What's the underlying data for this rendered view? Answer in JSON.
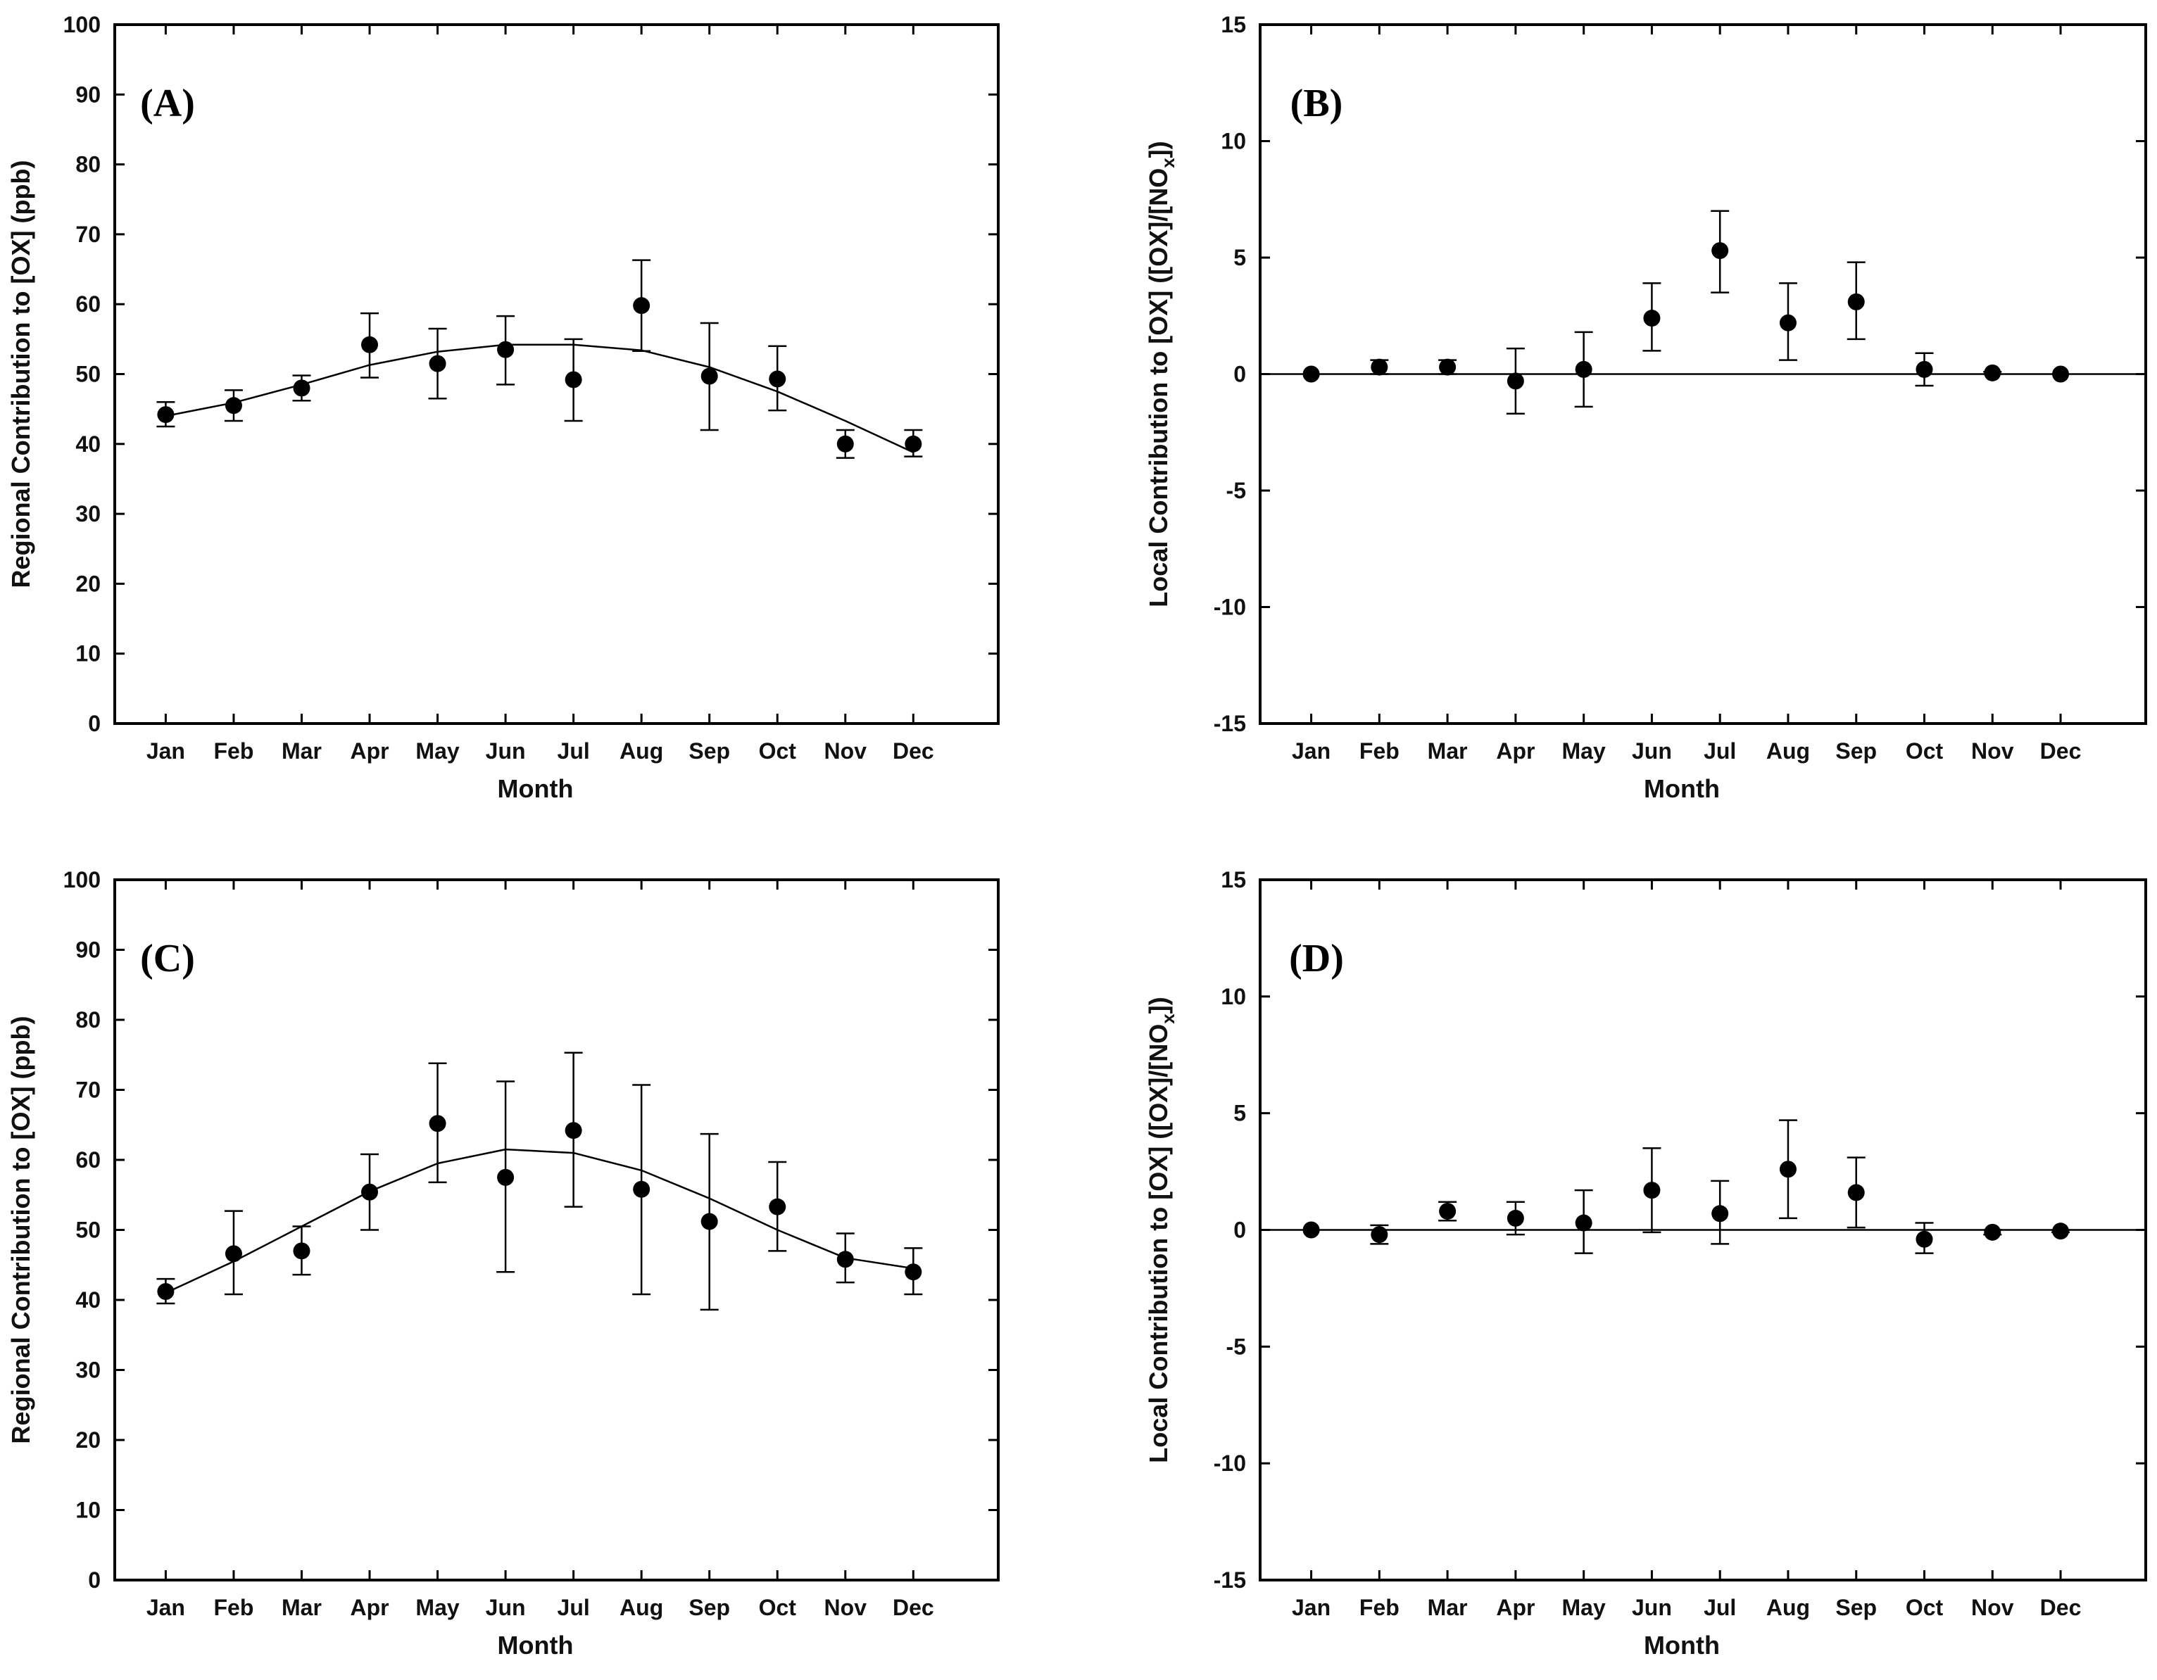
{
  "chart_data": [
    {
      "panel": "(A)",
      "type": "scatter",
      "categories": [
        "Jan",
        "Feb",
        "Mar",
        "Apr",
        "May",
        "Jun",
        "Jul",
        "Aug",
        "Sep",
        "Oct",
        "Nov",
        "Dec"
      ],
      "values": [
        44.2,
        45.5,
        48.0,
        54.2,
        51.5,
        53.5,
        49.2,
        59.8,
        49.7,
        49.3,
        40.0,
        40.0
      ],
      "err_low": [
        42.5,
        43.3,
        46.2,
        49.5,
        46.5,
        48.5,
        43.3,
        53.3,
        42.0,
        44.8,
        38.0,
        38.2
      ],
      "err_high": [
        46.0,
        47.7,
        49.8,
        58.7,
        56.5,
        58.3,
        55.0,
        66.3,
        57.3,
        54.0,
        42.0,
        42.0
      ],
      "fit": [
        44.0,
        45.9,
        48.5,
        51.3,
        53.2,
        54.2,
        54.2,
        53.4,
        51.0,
        47.5,
        43.3,
        38.8
      ],
      "xlabel": "Month",
      "ylabel": "Regional Contribution to [OX] (ppb)",
      "ylim": [
        0,
        100
      ],
      "yticks": [
        "0",
        "10",
        "20",
        "30",
        "40",
        "50",
        "60",
        "70",
        "80",
        "90",
        "100"
      ],
      "zero_line": false
    },
    {
      "panel": "(B)",
      "type": "scatter",
      "categories": [
        "Jan",
        "Feb",
        "Mar",
        "Apr",
        "May",
        "Jun",
        "Jul",
        "Aug",
        "Sep",
        "Oct",
        "Nov",
        "Dec"
      ],
      "values": [
        0.0,
        0.3,
        0.3,
        -0.3,
        0.2,
        2.4,
        5.3,
        2.2,
        3.1,
        0.2,
        0.05,
        0.0
      ],
      "err_low": [
        0.0,
        0.0,
        0.0,
        -1.7,
        -1.4,
        1.0,
        3.5,
        0.6,
        1.5,
        -0.5,
        0.0,
        0.0
      ],
      "err_high": [
        0.0,
        0.6,
        0.6,
        1.1,
        1.8,
        3.9,
        7.0,
        3.9,
        4.8,
        0.9,
        0.1,
        0.0
      ],
      "xlabel": "Month",
      "ylabel": "Local Contribution to [OX] ([OX]/[NO",
      "ylabel_sub": "x",
      "ylabel_end": "])",
      "ylim": [
        -15,
        15
      ],
      "yticks": [
        "-15",
        "-10",
        "-5",
        "0",
        "5",
        "10",
        "15"
      ],
      "zero_line": true
    },
    {
      "panel": "(C)",
      "type": "scatter",
      "categories": [
        "Jan",
        "Feb",
        "Mar",
        "Apr",
        "May",
        "Jun",
        "Jul",
        "Aug",
        "Sep",
        "Oct",
        "Nov",
        "Dec"
      ],
      "values": [
        41.2,
        46.6,
        47.0,
        55.4,
        65.2,
        57.5,
        64.2,
        55.8,
        51.2,
        53.3,
        45.8,
        44.0
      ],
      "err_low": [
        39.5,
        40.8,
        43.6,
        50.0,
        56.8,
        44.0,
        53.3,
        40.8,
        38.6,
        47.0,
        42.5,
        40.8
      ],
      "err_high": [
        43.0,
        52.7,
        50.5,
        60.8,
        73.8,
        71.2,
        75.3,
        70.7,
        63.7,
        59.7,
        49.5,
        47.4
      ],
      "fit": [
        41.0,
        45.5,
        50.5,
        55.5,
        59.5,
        61.5,
        61.0,
        58.5,
        54.5,
        50.0,
        46.0,
        44.5
      ],
      "xlabel": "Month",
      "ylabel": "Regional Contribution to [OX] (ppb)",
      "ylim": [
        0,
        100
      ],
      "yticks": [
        "0",
        "10",
        "20",
        "30",
        "40",
        "50",
        "60",
        "70",
        "80",
        "90",
        "100"
      ],
      "zero_line": false
    },
    {
      "panel": "(D)",
      "type": "scatter",
      "categories": [
        "Jan",
        "Feb",
        "Mar",
        "Apr",
        "May",
        "Jun",
        "Jul",
        "Aug",
        "Sep",
        "Oct",
        "Nov",
        "Dec"
      ],
      "values": [
        0.0,
        -0.2,
        0.8,
        0.5,
        0.3,
        1.7,
        0.7,
        2.6,
        1.6,
        -0.4,
        -0.1,
        -0.05
      ],
      "err_low": [
        0.0,
        -0.6,
        0.4,
        -0.2,
        -1.0,
        -0.1,
        -0.6,
        0.5,
        0.1,
        -1.0,
        -0.2,
        -0.1
      ],
      "err_high": [
        0.0,
        0.2,
        1.2,
        1.2,
        1.7,
        3.5,
        2.1,
        4.7,
        3.1,
        0.3,
        0.0,
        0.0
      ],
      "xlabel": "Month",
      "ylabel": "Local Contribution to [OX] ([OX]/[NO",
      "ylabel_sub": "x",
      "ylabel_end": "])",
      "ylim": [
        -15,
        15
      ],
      "yticks": [
        "-15",
        "-10",
        "-5",
        "0",
        "5",
        "10",
        "15"
      ],
      "zero_line": true
    }
  ]
}
